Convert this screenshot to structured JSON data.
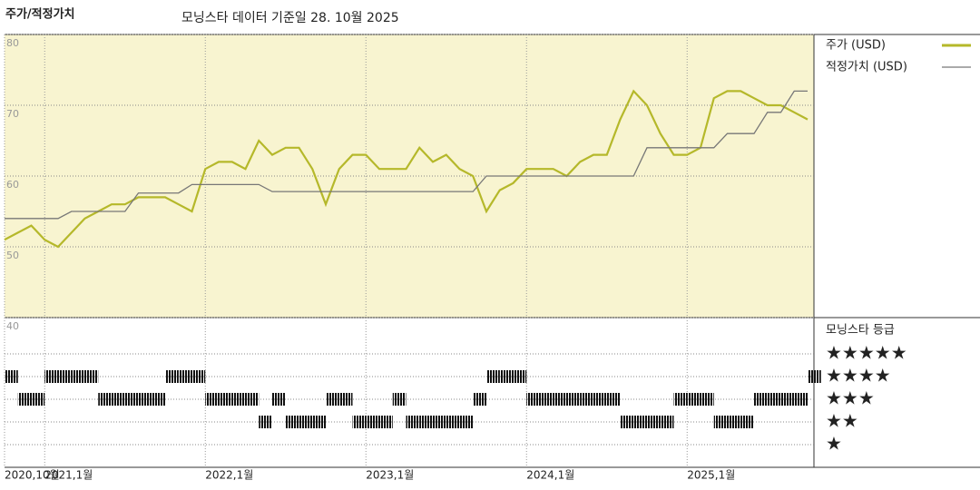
{
  "chart_data": {
    "type": "line",
    "title": "주가/적정가치",
    "subtitle": "모닝스타 데이터 기준일 28. 10월 2025",
    "categories": [
      "2020,10월",
      null,
      null,
      "2021,1월",
      null,
      null,
      null,
      null,
      null,
      null,
      null,
      null,
      null,
      null,
      null,
      "2022,1월",
      null,
      null,
      null,
      null,
      null,
      null,
      null,
      null,
      null,
      null,
      null,
      "2023,1월",
      null,
      null,
      null,
      null,
      null,
      null,
      null,
      null,
      null,
      null,
      null,
      "2024,1월",
      null,
      null,
      null,
      null,
      null,
      null,
      null,
      null,
      null,
      null,
      null,
      "2025,1월",
      null,
      null,
      null,
      null,
      null,
      null,
      null,
      null,
      null
    ],
    "series": [
      {
        "name": "주가 (USD)",
        "color": "#b5b82a",
        "values": [
          51,
          52,
          53,
          51,
          50,
          52,
          54,
          55,
          56,
          56,
          57,
          57,
          57,
          56,
          55,
          61,
          62,
          62,
          61,
          65,
          63,
          64,
          64,
          61,
          56,
          61,
          63,
          63,
          61,
          61,
          61,
          64,
          62,
          63,
          61,
          60,
          55,
          58,
          59,
          61,
          61,
          61,
          60,
          62,
          63,
          63,
          68,
          72,
          70,
          66,
          63,
          63,
          64,
          71,
          72,
          72,
          71,
          70,
          70,
          69,
          68
        ]
      },
      {
        "name": "적정가치 (USD)",
        "color": "#777777",
        "values": [
          54,
          54,
          54,
          54,
          54,
          55,
          55,
          55,
          55,
          55,
          57.6,
          57.6,
          57.6,
          57.6,
          58.8,
          58.8,
          58.8,
          58.8,
          58.8,
          58.8,
          57.8,
          57.8,
          57.8,
          57.8,
          57.8,
          57.8,
          57.8,
          57.8,
          57.8,
          57.8,
          57.8,
          57.8,
          57.8,
          57.8,
          57.8,
          57.8,
          60,
          60,
          60,
          60,
          60,
          60,
          60,
          60,
          60,
          60,
          60,
          60,
          64,
          64,
          64,
          64,
          64,
          64,
          66,
          66,
          66,
          69,
          69,
          72,
          72
        ]
      }
    ],
    "ylim": [
      40,
      80
    ],
    "yticks": [
      40,
      50,
      60,
      70,
      80
    ],
    "grid": true,
    "background": "#f8f4d0",
    "rating": {
      "title": "모닝스타 등급",
      "labels": [
        "★★★★★",
        "★★★★",
        "★★★",
        "★★",
        "★"
      ],
      "levels": [
        5,
        4,
        3,
        2,
        1
      ],
      "values": [
        4,
        3,
        3,
        4,
        4,
        4,
        4,
        3,
        3,
        3,
        3,
        3,
        4,
        4,
        4,
        3,
        3,
        3,
        3,
        2,
        3,
        2,
        2,
        2,
        3,
        3,
        2,
        2,
        2,
        3,
        2,
        2,
        2,
        2,
        2,
        3,
        4,
        4,
        4,
        3,
        3,
        3,
        3,
        3,
        3,
        3,
        2,
        2,
        2,
        2,
        3,
        3,
        3,
        2,
        2,
        2,
        3,
        3,
        3,
        3,
        4
      ]
    }
  }
}
